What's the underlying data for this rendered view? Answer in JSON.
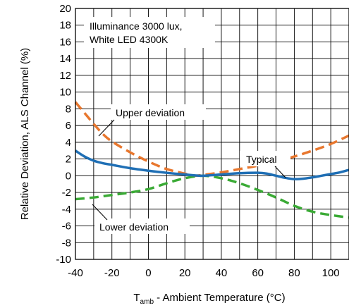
{
  "chart_data": {
    "type": "line",
    "xlabel_main": "T",
    "xlabel_sub": "amb",
    "xlabel_rest": " - Ambient Temperature (°C)",
    "ylabel": "Relative Deviation, ALS Channel (%)",
    "xlim": [
      -40,
      110
    ],
    "ylim": [
      -10,
      20
    ],
    "x_ticks": [
      -40,
      -20,
      0,
      20,
      40,
      60,
      80,
      100
    ],
    "y_ticks": [
      -10,
      -8,
      -6,
      -4,
      -2,
      0,
      2,
      4,
      6,
      8,
      10,
      12,
      14,
      16,
      18,
      20
    ],
    "grid": true,
    "annotation_title": [
      "Illuminance 3000 lux,",
      "White LED 4300K"
    ],
    "series": [
      {
        "name": "Typical",
        "color": "#1f6fb5",
        "style": "solid",
        "x": [
          -40,
          -35,
          -30,
          -25,
          -20,
          -10,
          0,
          10,
          20,
          25,
          30,
          40,
          50,
          60,
          65,
          70,
          75,
          80,
          85,
          90,
          95,
          100,
          105,
          110
        ],
        "y": [
          3.0,
          2.3,
          1.8,
          1.5,
          1.3,
          0.9,
          0.6,
          0.35,
          0.15,
          0.05,
          0.0,
          0.15,
          0.3,
          0.35,
          0.25,
          0.0,
          -0.25,
          -0.4,
          -0.35,
          -0.2,
          0.0,
          0.2,
          0.4,
          0.7
        ]
      },
      {
        "name": "Upper deviation",
        "color": "#e8772e",
        "style": "dashed",
        "x": [
          -40,
          -35,
          -30,
          -25,
          -20,
          -10,
          0,
          10,
          20,
          25,
          30,
          40,
          50,
          60,
          70,
          80,
          90,
          100,
          110
        ],
        "y": [
          8.8,
          7.5,
          6.2,
          5.0,
          4.1,
          2.8,
          1.7,
          0.8,
          0.25,
          0.0,
          0.1,
          0.4,
          0.8,
          1.2,
          1.7,
          2.3,
          3.0,
          3.8,
          4.8
        ]
      },
      {
        "name": "Lower deviation",
        "color": "#3aaa35",
        "style": "dashed",
        "x": [
          -40,
          -30,
          -20,
          -10,
          0,
          10,
          20,
          30,
          40,
          50,
          60,
          70,
          80,
          90,
          100,
          110
        ],
        "y": [
          -2.8,
          -2.6,
          -2.3,
          -2.0,
          -1.6,
          -0.9,
          -0.3,
          0.0,
          -0.3,
          -0.9,
          -1.7,
          -2.6,
          -3.6,
          -4.3,
          -4.7,
          -5.0
        ]
      }
    ],
    "legend_labels": {
      "upper": "Upper deviation",
      "typical": "Typical",
      "lower": "Lower deviation"
    }
  }
}
